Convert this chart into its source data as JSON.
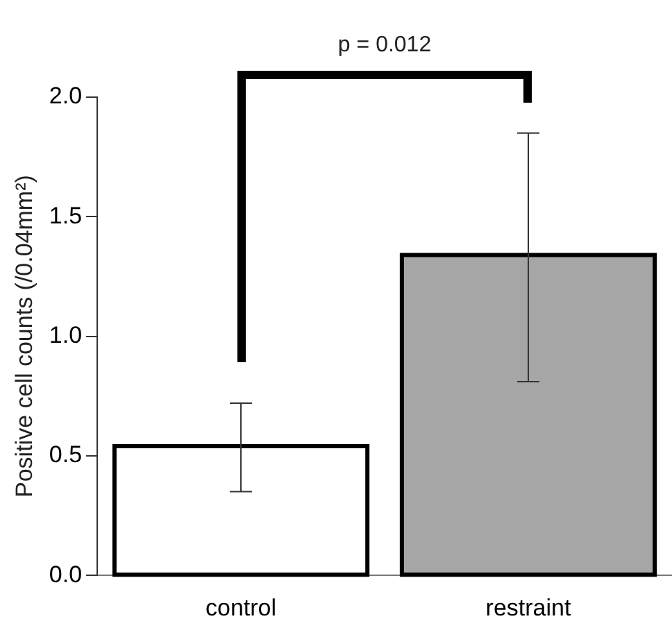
{
  "chart_data": {
    "type": "bar",
    "ylabel": "Positive cell counts (/0.04mm²)",
    "categories": [
      "control",
      "restraint"
    ],
    "values": [
      0.54,
      1.34
    ],
    "colors": [
      "#ffffff",
      "#a6a6a6"
    ],
    "errors": [
      [
        0.35,
        0.72
      ],
      [
        0.81,
        1.85
      ]
    ],
    "ylim": [
      0,
      2.0
    ],
    "yticks": [
      {
        "value": 0,
        "label": "0.0"
      },
      {
        "value": 0.5,
        "label": "0.5"
      },
      {
        "value": 1,
        "label": "1.0"
      },
      {
        "value": 1.5,
        "label": "1.5"
      },
      {
        "value": 2,
        "label": "2.0"
      }
    ],
    "grid": false,
    "legend": false,
    "annotations": [
      "p = 0.012"
    ]
  }
}
